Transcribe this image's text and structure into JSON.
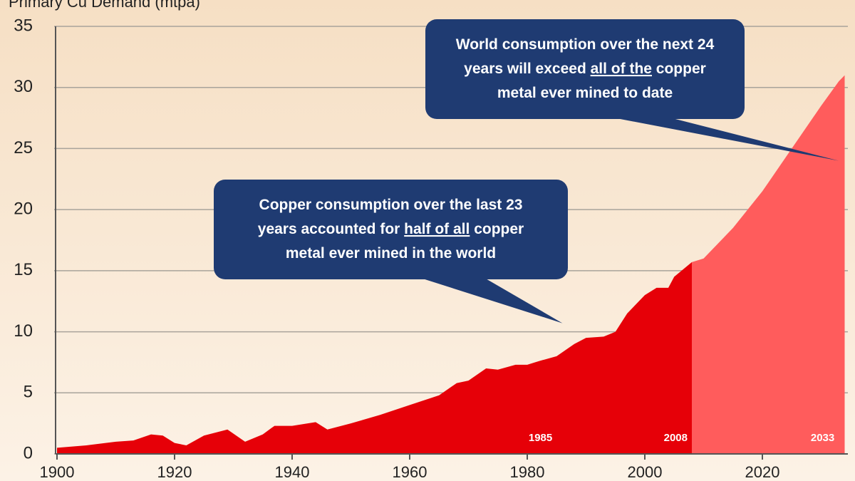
{
  "chart_data": {
    "type": "area",
    "y_axis_label": "Primary Cu Demand (mtpa)",
    "x": [
      1900,
      1905,
      1910,
      1913,
      1916,
      1918,
      1920,
      1922,
      1925,
      1929,
      1932,
      1935,
      1937,
      1940,
      1944,
      1946,
      1950,
      1955,
      1960,
      1965,
      1968,
      1970,
      1973,
      1975,
      1978,
      1980,
      1982,
      1985,
      1988,
      1990,
      1993,
      1995,
      1997,
      2000,
      2002,
      2004,
      2005,
      2008,
      2010,
      2015,
      2020,
      2025,
      2030,
      2033,
      2034
    ],
    "values": [
      0.5,
      0.7,
      1.0,
      1.1,
      1.6,
      1.5,
      0.9,
      0.7,
      1.5,
      2.0,
      1.0,
      1.6,
      2.3,
      2.3,
      2.6,
      2.0,
      2.5,
      3.2,
      4.0,
      4.8,
      5.8,
      6.0,
      7.0,
      6.9,
      7.3,
      7.3,
      7.6,
      8.0,
      9.0,
      9.5,
      9.6,
      10.0,
      11.5,
      13.0,
      13.6,
      13.6,
      14.5,
      15.7,
      16.0,
      18.5,
      21.5,
      25.0,
      28.5,
      30.5,
      31.0
    ],
    "color": "#e60008",
    "forecast_color": "#ff5c5c",
    "forecast_start": 2008,
    "period_markers": [
      1985,
      2008,
      2033
    ],
    "xlim": [
      1900,
      2034
    ],
    "xticks": [
      1900,
      1920,
      1940,
      1960,
      1980,
      2000,
      2020
    ],
    "ylim": [
      0,
      35
    ],
    "yticks": [
      0,
      5,
      10,
      15,
      20,
      25,
      30,
      35
    ],
    "grid": true,
    "annotations": [
      {
        "x": 2033,
        "y": 24,
        "lines": [
          [
            {
              "text": "World consumption over the next 24"
            }
          ],
          [
            {
              "text": "years will exceed "
            },
            {
              "text": "all of the",
              "underline": true
            },
            {
              "text": " copper"
            }
          ],
          [
            {
              "text": "metal ever mined to date"
            }
          ]
        ]
      },
      {
        "x": 1986,
        "y": 10.7,
        "lines": [
          [
            {
              "text": "Copper consumption over the last 23"
            }
          ],
          [
            {
              "text": "years accounted for "
            },
            {
              "text": "half of all",
              "underline": true
            },
            {
              "text": " copper"
            }
          ],
          [
            {
              "text": "metal ever mined in the world"
            }
          ]
        ]
      }
    ]
  }
}
